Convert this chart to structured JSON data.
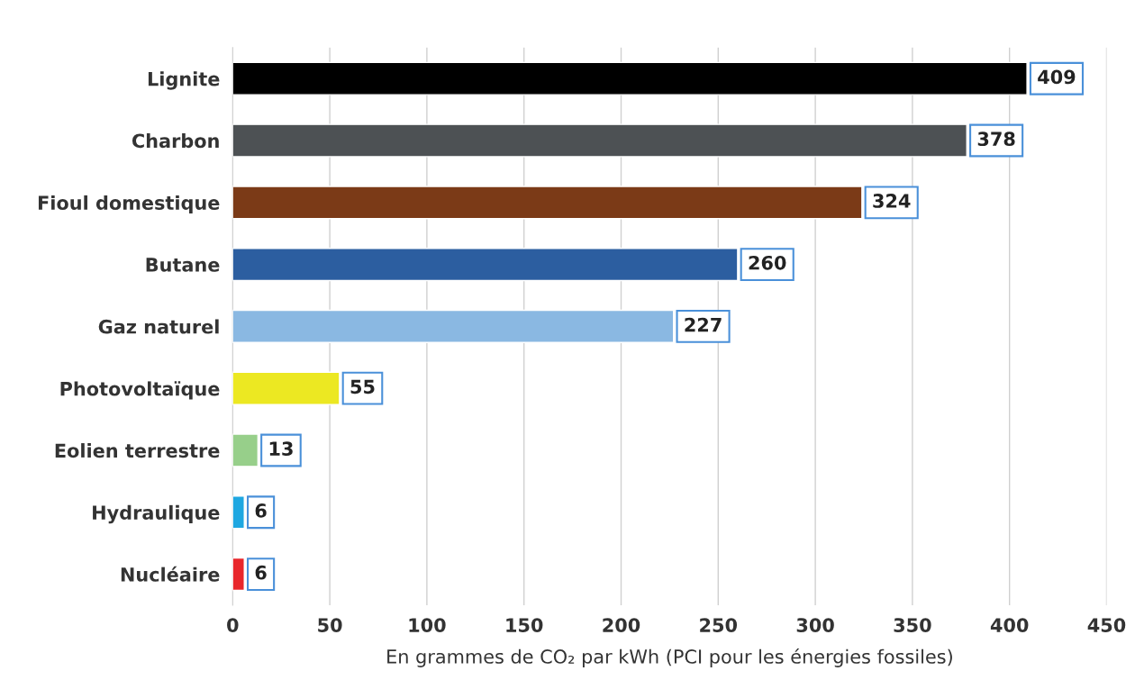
{
  "chart_data": {
    "type": "bar",
    "orientation": "horizontal",
    "xlabel": "En grammes de CO₂ par kWh (PCI pour les énergies fossiles)",
    "categories": [
      "Lignite",
      "Charbon",
      "Fioul domestique",
      "Butane",
      "Gaz naturel",
      "Photovoltaïque",
      "Eolien terrestre",
      "Hydraulique",
      "Nucléaire"
    ],
    "values": [
      409,
      378,
      324,
      260,
      227,
      55,
      13,
      6,
      6
    ],
    "colors": [
      "#000000",
      "#4d5154",
      "#7b3a17",
      "#2c5ea0",
      "#8ab8e2",
      "#ece822",
      "#97cf8a",
      "#1ea7e1",
      "#e8262b"
    ],
    "xlim": [
      0,
      450
    ],
    "xticks": [
      0,
      50,
      100,
      150,
      200,
      250,
      300,
      350,
      400,
      450
    ],
    "grid": "x",
    "data_labels": true
  }
}
